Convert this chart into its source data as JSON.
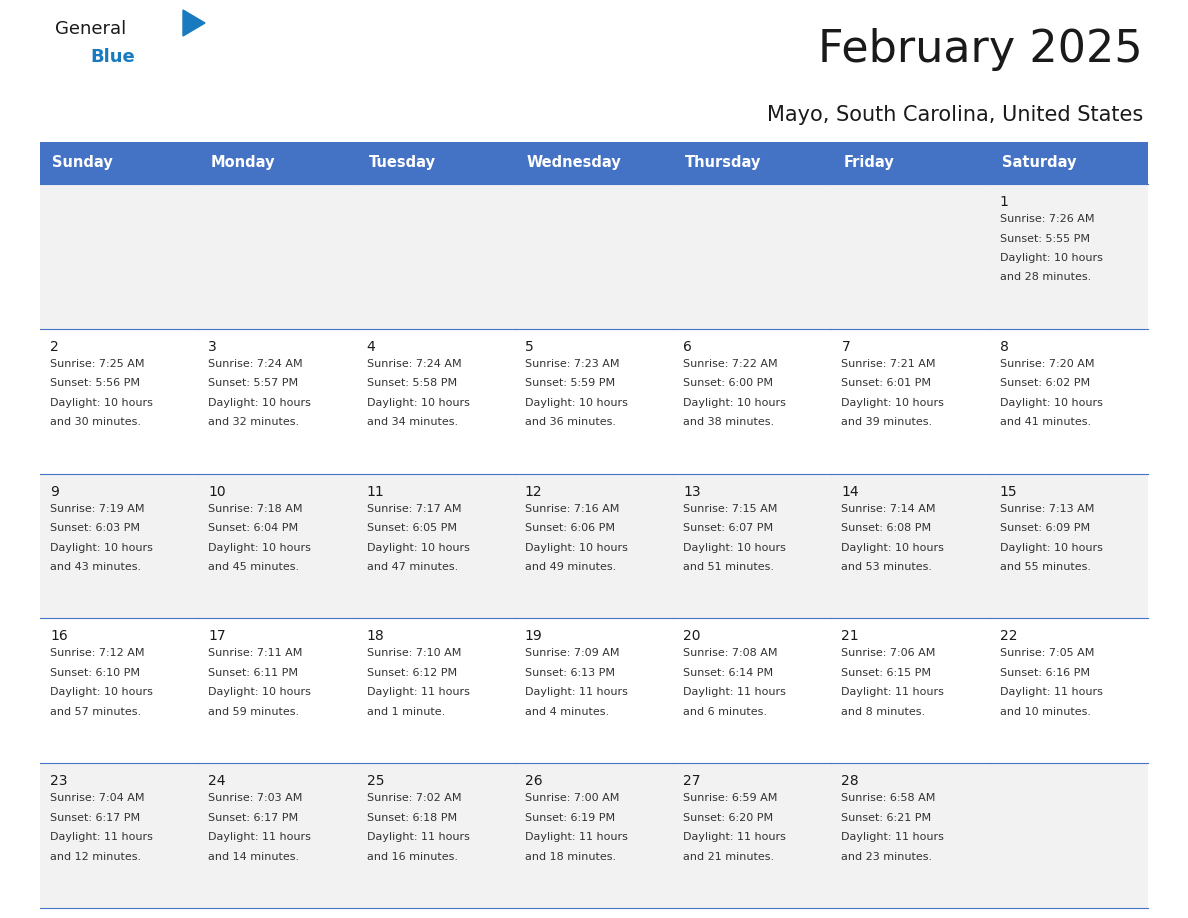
{
  "title": "February 2025",
  "subtitle": "Mayo, South Carolina, United States",
  "header_bg": "#4472C4",
  "header_text": "#FFFFFF",
  "cell_bg_light": "#F2F2F2",
  "cell_bg_white": "#FFFFFF",
  "border_color": "#4472C4",
  "text_color": "#333333",
  "day_num_color": "#1a1a1a",
  "days_of_week": [
    "Sunday",
    "Monday",
    "Tuesday",
    "Wednesday",
    "Thursday",
    "Friday",
    "Saturday"
  ],
  "calendar": [
    [
      null,
      null,
      null,
      null,
      null,
      null,
      {
        "day": 1,
        "sunrise": "7:26 AM",
        "sunset": "5:55 PM",
        "daylight": "10 hours",
        "daylight2": "and 28 minutes."
      }
    ],
    [
      {
        "day": 2,
        "sunrise": "7:25 AM",
        "sunset": "5:56 PM",
        "daylight": "10 hours",
        "daylight2": "and 30 minutes."
      },
      {
        "day": 3,
        "sunrise": "7:24 AM",
        "sunset": "5:57 PM",
        "daylight": "10 hours",
        "daylight2": "and 32 minutes."
      },
      {
        "day": 4,
        "sunrise": "7:24 AM",
        "sunset": "5:58 PM",
        "daylight": "10 hours",
        "daylight2": "and 34 minutes."
      },
      {
        "day": 5,
        "sunrise": "7:23 AM",
        "sunset": "5:59 PM",
        "daylight": "10 hours",
        "daylight2": "and 36 minutes."
      },
      {
        "day": 6,
        "sunrise": "7:22 AM",
        "sunset": "6:00 PM",
        "daylight": "10 hours",
        "daylight2": "and 38 minutes."
      },
      {
        "day": 7,
        "sunrise": "7:21 AM",
        "sunset": "6:01 PM",
        "daylight": "10 hours",
        "daylight2": "and 39 minutes."
      },
      {
        "day": 8,
        "sunrise": "7:20 AM",
        "sunset": "6:02 PM",
        "daylight": "10 hours",
        "daylight2": "and 41 minutes."
      }
    ],
    [
      {
        "day": 9,
        "sunrise": "7:19 AM",
        "sunset": "6:03 PM",
        "daylight": "10 hours",
        "daylight2": "and 43 minutes."
      },
      {
        "day": 10,
        "sunrise": "7:18 AM",
        "sunset": "6:04 PM",
        "daylight": "10 hours",
        "daylight2": "and 45 minutes."
      },
      {
        "day": 11,
        "sunrise": "7:17 AM",
        "sunset": "6:05 PM",
        "daylight": "10 hours",
        "daylight2": "and 47 minutes."
      },
      {
        "day": 12,
        "sunrise": "7:16 AM",
        "sunset": "6:06 PM",
        "daylight": "10 hours",
        "daylight2": "and 49 minutes."
      },
      {
        "day": 13,
        "sunrise": "7:15 AM",
        "sunset": "6:07 PM",
        "daylight": "10 hours",
        "daylight2": "and 51 minutes."
      },
      {
        "day": 14,
        "sunrise": "7:14 AM",
        "sunset": "6:08 PM",
        "daylight": "10 hours",
        "daylight2": "and 53 minutes."
      },
      {
        "day": 15,
        "sunrise": "7:13 AM",
        "sunset": "6:09 PM",
        "daylight": "10 hours",
        "daylight2": "and 55 minutes."
      }
    ],
    [
      {
        "day": 16,
        "sunrise": "7:12 AM",
        "sunset": "6:10 PM",
        "daylight": "10 hours",
        "daylight2": "and 57 minutes."
      },
      {
        "day": 17,
        "sunrise": "7:11 AM",
        "sunset": "6:11 PM",
        "daylight": "10 hours",
        "daylight2": "and 59 minutes."
      },
      {
        "day": 18,
        "sunrise": "7:10 AM",
        "sunset": "6:12 PM",
        "daylight": "11 hours",
        "daylight2": "and 1 minute."
      },
      {
        "day": 19,
        "sunrise": "7:09 AM",
        "sunset": "6:13 PM",
        "daylight": "11 hours",
        "daylight2": "and 4 minutes."
      },
      {
        "day": 20,
        "sunrise": "7:08 AM",
        "sunset": "6:14 PM",
        "daylight": "11 hours",
        "daylight2": "and 6 minutes."
      },
      {
        "day": 21,
        "sunrise": "7:06 AM",
        "sunset": "6:15 PM",
        "daylight": "11 hours",
        "daylight2": "and 8 minutes."
      },
      {
        "day": 22,
        "sunrise": "7:05 AM",
        "sunset": "6:16 PM",
        "daylight": "11 hours",
        "daylight2": "and 10 minutes."
      }
    ],
    [
      {
        "day": 23,
        "sunrise": "7:04 AM",
        "sunset": "6:17 PM",
        "daylight": "11 hours",
        "daylight2": "and 12 minutes."
      },
      {
        "day": 24,
        "sunrise": "7:03 AM",
        "sunset": "6:17 PM",
        "daylight": "11 hours",
        "daylight2": "and 14 minutes."
      },
      {
        "day": 25,
        "sunrise": "7:02 AM",
        "sunset": "6:18 PM",
        "daylight": "11 hours",
        "daylight2": "and 16 minutes."
      },
      {
        "day": 26,
        "sunrise": "7:00 AM",
        "sunset": "6:19 PM",
        "daylight": "11 hours",
        "daylight2": "and 18 minutes."
      },
      {
        "day": 27,
        "sunrise": "6:59 AM",
        "sunset": "6:20 PM",
        "daylight": "11 hours",
        "daylight2": "and 21 minutes."
      },
      {
        "day": 28,
        "sunrise": "6:58 AM",
        "sunset": "6:21 PM",
        "daylight": "11 hours",
        "daylight2": "and 23 minutes."
      },
      null
    ]
  ],
  "logo_color_general": "#1a1a1a",
  "logo_color_blue": "#1a7abf",
  "logo_triangle_color": "#1a7abf"
}
